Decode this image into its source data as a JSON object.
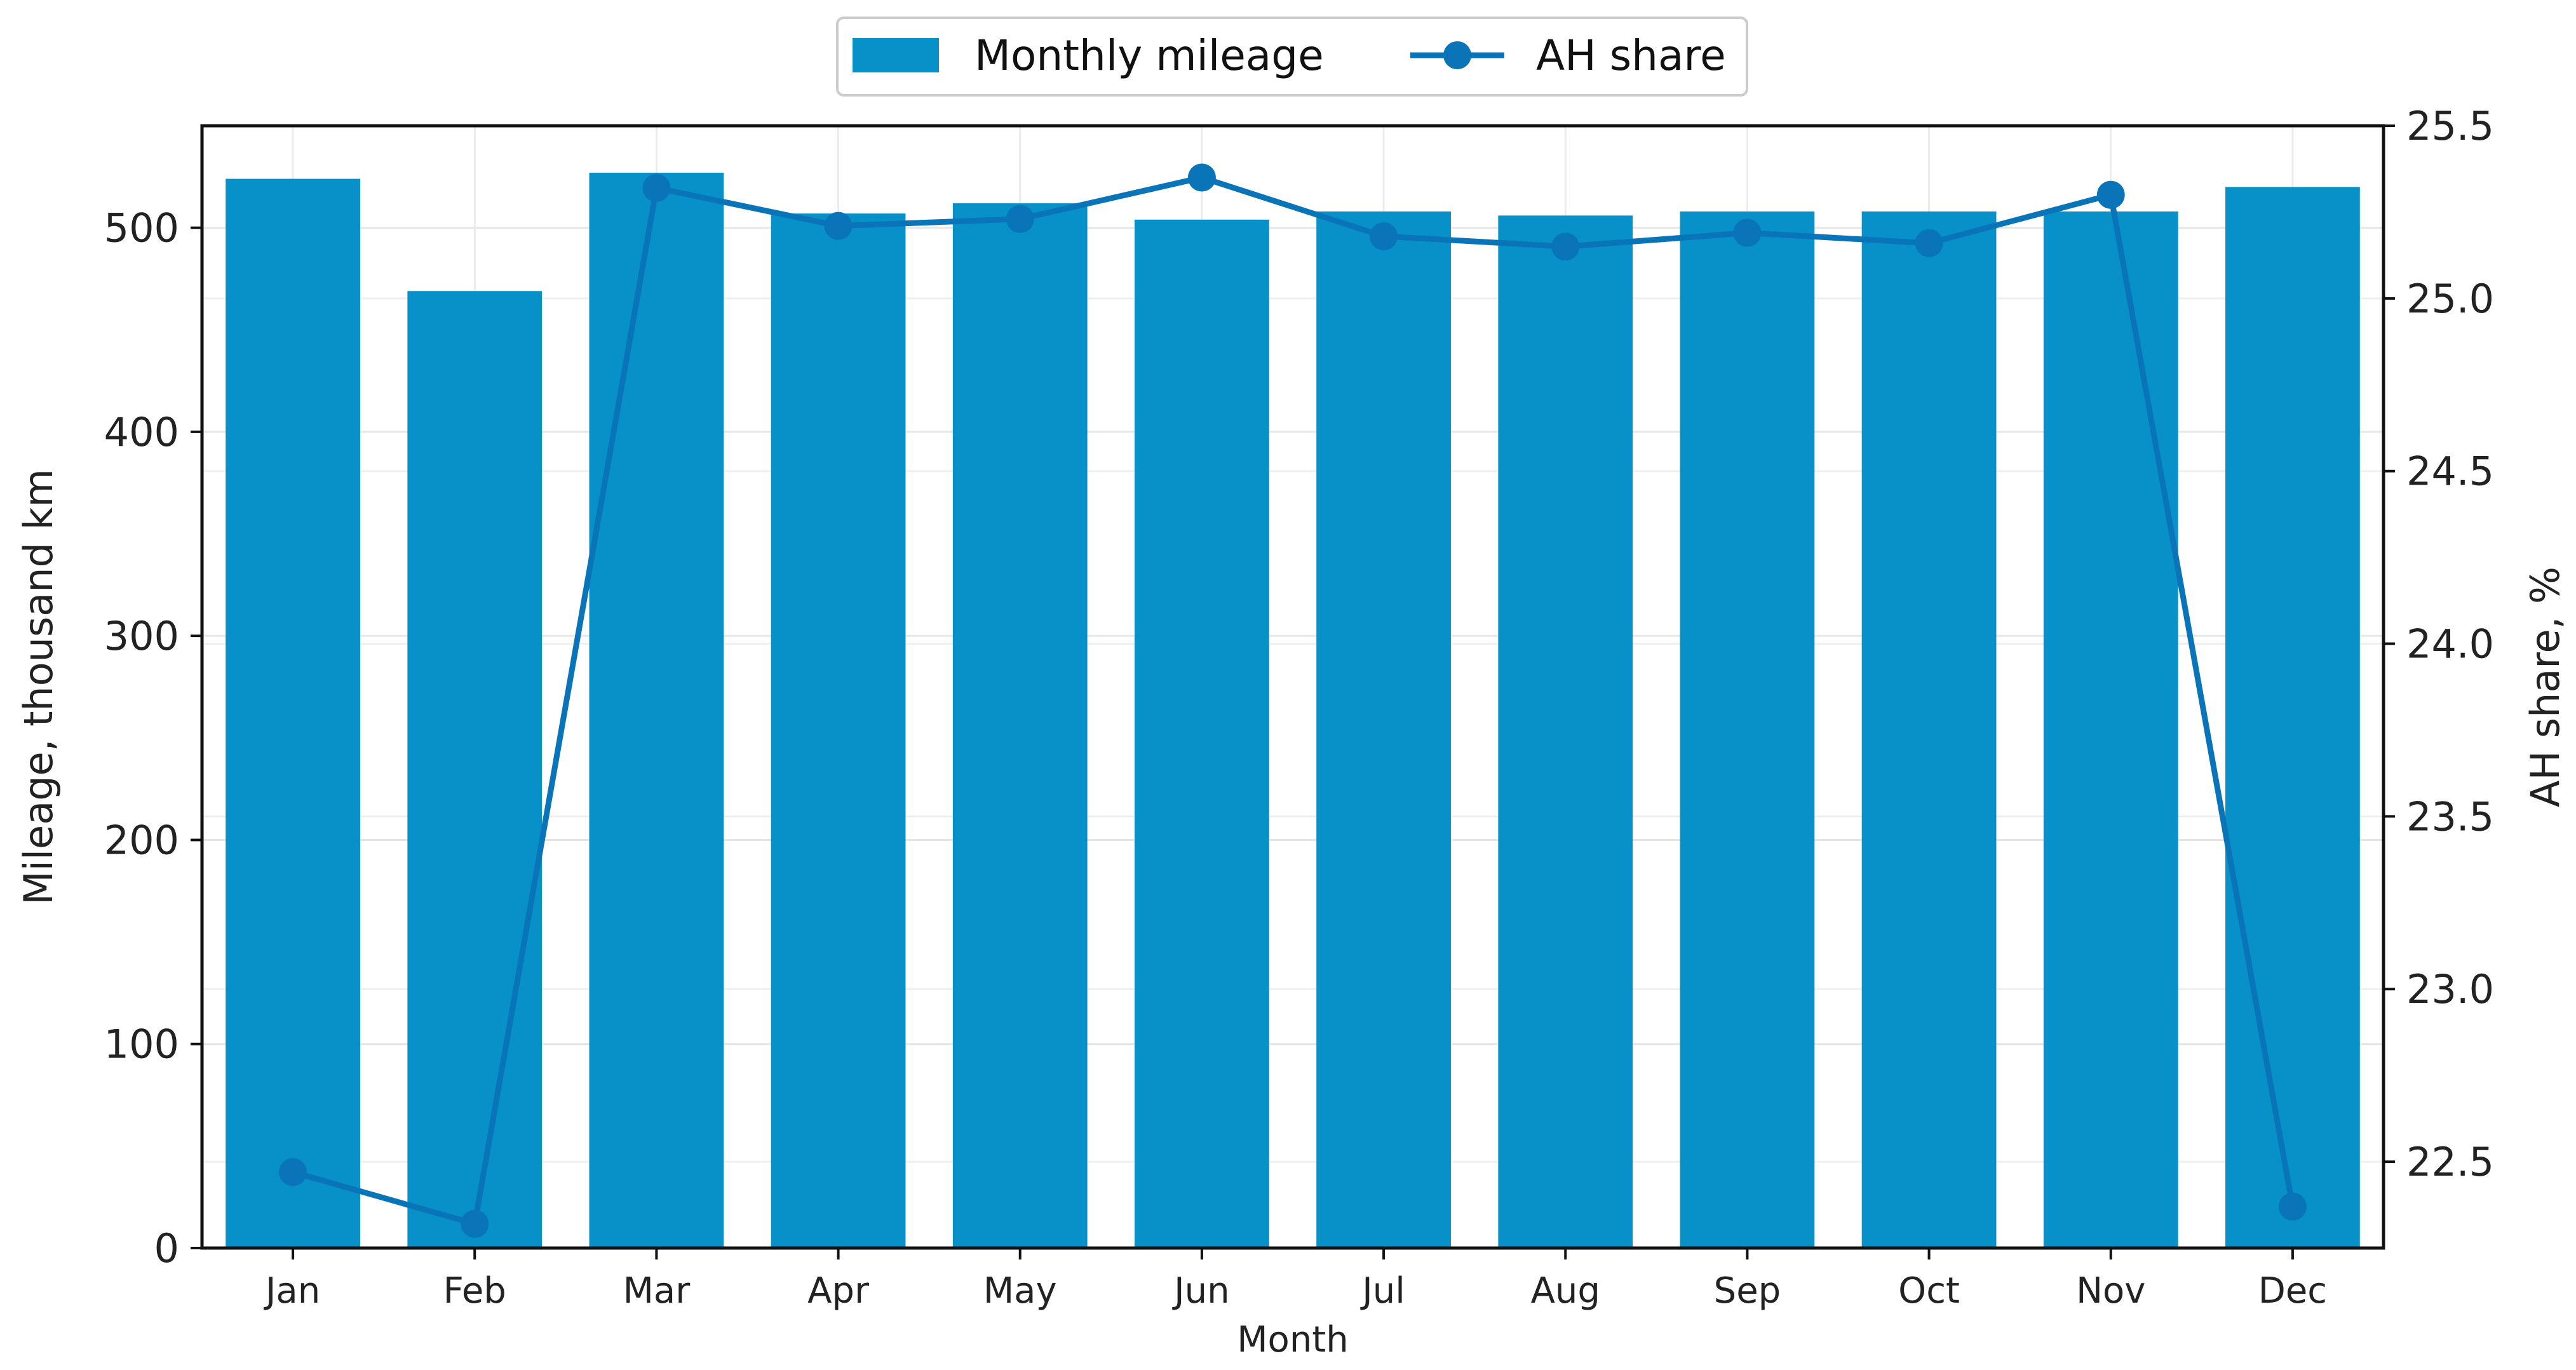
{
  "chart_data": {
    "type": "bar",
    "categories": [
      "Jan",
      "Feb",
      "Mar",
      "Apr",
      "May",
      "Jun",
      "Jul",
      "Aug",
      "Sep",
      "Oct",
      "Nov",
      "Dec"
    ],
    "series": [
      {
        "name": "Monthly mileage",
        "type": "bar",
        "axis": "left",
        "color": "#0891c8",
        "values": [
          524,
          469,
          527,
          507,
          512,
          504,
          508,
          506,
          508,
          508,
          508,
          520
        ]
      },
      {
        "name": "AH share",
        "type": "line",
        "axis": "right",
        "marker": "circle",
        "color": "#0a74b8",
        "values": [
          22.47,
          22.32,
          25.32,
          25.21,
          25.23,
          25.35,
          25.18,
          25.15,
          25.19,
          25.16,
          25.3,
          22.37
        ]
      }
    ],
    "xlabel": "Month",
    "ylabel": "Mileage, thousand km",
    "y2label": "AH share, %",
    "ylim": [
      0,
      550
    ],
    "y2lim": [
      22.25,
      25.5
    ],
    "yticks": [
      "0",
      "100",
      "200",
      "300",
      "400",
      "500"
    ],
    "y2ticks": [
      "22.5",
      "23.0",
      "23.5",
      "24.0",
      "24.5",
      "25.0",
      "25.5"
    ],
    "grid": true,
    "legend_position": "top-center"
  }
}
